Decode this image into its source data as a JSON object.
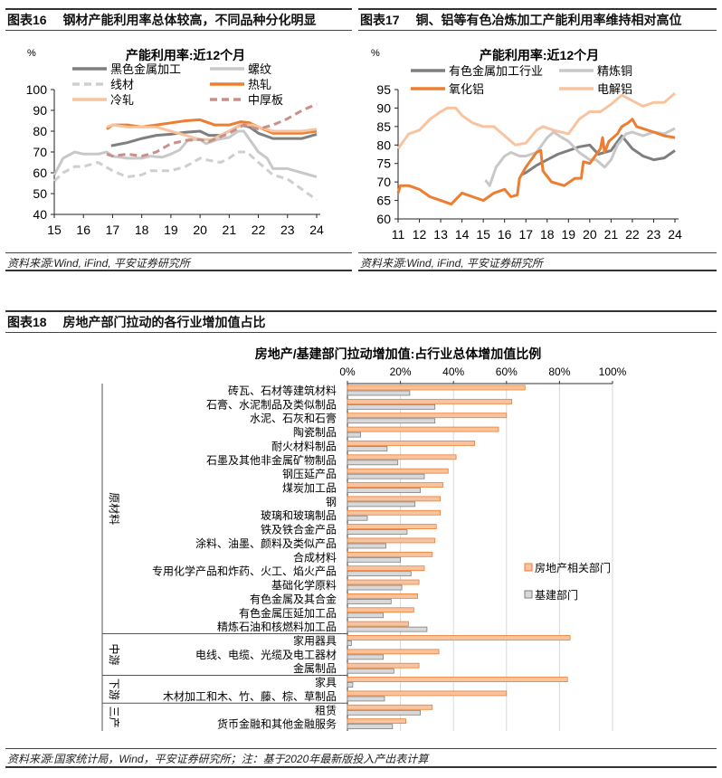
{
  "fig16": {
    "label": "图表16",
    "heading": "钢材产能利用率总体较高，不同品种分化明显",
    "source": "资料来源:Wind, iFind, 平安证券研究所"
  },
  "fig17": {
    "label": "图表17",
    "heading": "铜、铝等有色冶炼加工产能利用率维持相对高位",
    "source": "资料来源:Wind, iFind, 平安证券研究所"
  },
  "fig18": {
    "label": "图表18",
    "heading": "房地产部门拉动的各行业增加值占比",
    "source": "资料来源:国家统计局，Wind，平安证券研究所；注：基于2020年最新版投入产出表计算"
  },
  "chart_data": [
    {
      "type": "line",
      "title": "产能利用率:近12个月",
      "unit": "%",
      "xlim": [
        15,
        24
      ],
      "ylim": [
        40,
        100
      ],
      "xticks": [
        "15",
        "16",
        "17",
        "18",
        "19",
        "20",
        "21",
        "22",
        "23",
        "24"
      ],
      "yticks": [
        "40",
        "50",
        "60",
        "70",
        "80",
        "90",
        "100"
      ],
      "legend": "top",
      "grid": false,
      "series": [
        {
          "name": "黑色金属加工",
          "color": "#7f7f7f",
          "dash": false,
          "points": [
            [
              16.95,
              73
            ],
            [
              17.5,
              74.5
            ],
            [
              18,
              76.5
            ],
            [
              18.5,
              78
            ],
            [
              19,
              78.5
            ],
            [
              19.5,
              79.5
            ],
            [
              20,
              80
            ],
            [
              20.3,
              78
            ],
            [
              20.7,
              78
            ],
            [
              21,
              80
            ],
            [
              21.4,
              83
            ],
            [
              21.7,
              82
            ],
            [
              22,
              79
            ],
            [
              22.5,
              76.5
            ],
            [
              23,
              76.5
            ],
            [
              23.5,
              76.5
            ],
            [
              24,
              78.5
            ]
          ]
        },
        {
          "name": "螺纹",
          "color": "#c8c8c8",
          "dash": false,
          "points": [
            [
              15,
              59
            ],
            [
              15.3,
              67
            ],
            [
              15.7,
              70
            ],
            [
              16,
              69
            ],
            [
              16.5,
              69
            ],
            [
              16.8,
              70
            ],
            [
              17,
              68
            ],
            [
              17.5,
              67
            ],
            [
              18,
              67
            ],
            [
              18.3,
              68
            ],
            [
              18.7,
              67.5
            ],
            [
              19,
              69
            ],
            [
              19.3,
              71
            ],
            [
              19.6,
              76
            ],
            [
              20,
              76
            ],
            [
              20.2,
              74
            ],
            [
              20.6,
              76
            ],
            [
              21,
              77
            ],
            [
              21.3,
              80
            ],
            [
              21.5,
              80
            ],
            [
              22,
              70
            ],
            [
              22.3,
              67
            ],
            [
              22.5,
              62
            ],
            [
              23,
              62
            ],
            [
              23.5,
              60
            ],
            [
              24,
              58
            ]
          ]
        },
        {
          "name": "线材",
          "color": "#cfcfcf",
          "dash": true,
          "points": [
            [
              15,
              56
            ],
            [
              15.3,
              60
            ],
            [
              15.7,
              63
            ],
            [
              16,
              63
            ],
            [
              16.5,
              65
            ],
            [
              17,
              61
            ],
            [
              17.5,
              58
            ],
            [
              18,
              59
            ],
            [
              18.3,
              61
            ],
            [
              19,
              61
            ],
            [
              19.5,
              63
            ],
            [
              20,
              67
            ],
            [
              20.3,
              66
            ],
            [
              20.7,
              65
            ],
            [
              21,
              67
            ],
            [
              21.3,
              70
            ],
            [
              21.6,
              70
            ],
            [
              22,
              65
            ],
            [
              22.5,
              59
            ],
            [
              23,
              57
            ],
            [
              23.5,
              52
            ],
            [
              24,
              47
            ]
          ]
        },
        {
          "name": "热轧",
          "color": "#ed7d31",
          "dash": false,
          "points": [
            [
              16.8,
              81
            ],
            [
              17,
              83
            ],
            [
              17.5,
              83
            ],
            [
              18,
              82
            ],
            [
              18.5,
              83
            ],
            [
              19,
              84
            ],
            [
              19.5,
              85
            ],
            [
              20,
              85.5
            ],
            [
              20.5,
              83
            ],
            [
              21,
              83
            ],
            [
              21.4,
              84.5
            ],
            [
              21.7,
              84
            ],
            [
              22,
              82
            ],
            [
              22.5,
              79
            ],
            [
              23,
              79
            ],
            [
              23.5,
              79
            ],
            [
              24,
              80
            ]
          ]
        },
        {
          "name": "冷轧",
          "color": "#f8c4a0",
          "dash": false,
          "points": [
            [
              16.8,
              82
            ],
            [
              17,
              83
            ],
            [
              17.5,
              82
            ],
            [
              18,
              82
            ],
            [
              18.5,
              82
            ],
            [
              19,
              80
            ],
            [
              19.5,
              78
            ],
            [
              20,
              76
            ],
            [
              20.4,
              76
            ],
            [
              21,
              80
            ],
            [
              21.4,
              83
            ],
            [
              21.8,
              83
            ],
            [
              22,
              82
            ],
            [
              22.5,
              80
            ],
            [
              23,
              80
            ],
            [
              23.5,
              80
            ],
            [
              24,
              81
            ]
          ]
        },
        {
          "name": "中厚板",
          "color": "#c9908a",
          "dash": true,
          "points": [
            [
              16.8,
              69
            ],
            [
              17,
              68
            ],
            [
              17.5,
              69
            ],
            [
              18,
              68
            ],
            [
              18.5,
              70
            ],
            [
              19,
              74
            ],
            [
              19.5,
              75.5
            ],
            [
              20,
              76
            ],
            [
              20.3,
              75
            ],
            [
              21,
              79
            ],
            [
              21.5,
              83
            ],
            [
              22,
              81
            ],
            [
              22.5,
              83
            ],
            [
              23,
              86
            ],
            [
              23.5,
              90
            ],
            [
              24,
              93
            ]
          ]
        }
      ]
    },
    {
      "type": "line",
      "title": "产能利用率:近12个月",
      "unit": "%",
      "xlim": [
        11,
        24
      ],
      "ylim": [
        60,
        95
      ],
      "xticks": [
        "11",
        "12",
        "13",
        "14",
        "15",
        "16",
        "17",
        "18",
        "19",
        "20",
        "21",
        "22",
        "23",
        "24"
      ],
      "yticks": [
        "60",
        "65",
        "70",
        "75",
        "80",
        "85",
        "90",
        "95"
      ],
      "legend": "top",
      "grid": false,
      "series": [
        {
          "name": "有色金属加工行业",
          "color": "#7f7f7f",
          "dash": false,
          "points": [
            [
              16.8,
              72
            ],
            [
              17,
              72.5
            ],
            [
              17.5,
              74.5
            ],
            [
              18,
              76
            ],
            [
              18.5,
              77.5
            ],
            [
              19,
              78.5
            ],
            [
              19.5,
              79.5
            ],
            [
              20,
              80
            ],
            [
              20.4,
              77.5
            ],
            [
              21,
              78.5
            ],
            [
              21.5,
              82.5
            ],
            [
              22,
              79
            ],
            [
              22.5,
              77
            ],
            [
              23,
              76
            ],
            [
              23.5,
              76.5
            ],
            [
              24,
              78.5
            ]
          ]
        },
        {
          "name": "精炼铜",
          "color": "#c8c8c8",
          "dash": false,
          "points": [
            [
              15.1,
              70.5
            ],
            [
              15.3,
              69
            ],
            [
              15.6,
              74
            ],
            [
              16,
              77
            ],
            [
              16.3,
              78
            ],
            [
              16.7,
              77
            ],
            [
              17,
              77
            ],
            [
              17.5,
              78
            ],
            [
              18,
              82
            ],
            [
              18.3,
              83.5
            ],
            [
              18.7,
              82
            ],
            [
              19,
              81
            ],
            [
              19.5,
              78
            ],
            [
              20,
              76
            ],
            [
              20.3,
              76
            ],
            [
              20.7,
              74
            ],
            [
              21,
              76
            ],
            [
              21.3,
              80
            ],
            [
              21.7,
              83
            ],
            [
              22,
              83.5
            ],
            [
              22.5,
              82.5
            ],
            [
              23,
              83.5
            ],
            [
              23.5,
              83
            ],
            [
              24,
              84.5
            ]
          ]
        },
        {
          "name": "氧化铝",
          "color": "#ed7d31",
          "dash": false,
          "points": [
            [
              11,
              67
            ],
            [
              11.1,
              69
            ],
            [
              11.5,
              69
            ],
            [
              12,
              68
            ],
            [
              12.5,
              66
            ],
            [
              13,
              65
            ],
            [
              13.5,
              64
            ],
            [
              14,
              67
            ],
            [
              14.5,
              66
            ],
            [
              15,
              65
            ],
            [
              15.5,
              67
            ],
            [
              16,
              68
            ],
            [
              16.3,
              66
            ],
            [
              16.6,
              66.5
            ],
            [
              16.7,
              71
            ],
            [
              17,
              74
            ],
            [
              17.5,
              78
            ],
            [
              17.7,
              78.5
            ],
            [
              17.8,
              73
            ],
            [
              18.2,
              70
            ],
            [
              18.8,
              69
            ],
            [
              19.3,
              71
            ],
            [
              19.6,
              71
            ],
            [
              19.7,
              75.5
            ],
            [
              20,
              75
            ],
            [
              20.5,
              79
            ],
            [
              20.6,
              82
            ],
            [
              20.7,
              78
            ],
            [
              20.9,
              81
            ],
            [
              21.3,
              83
            ],
            [
              21.5,
              85
            ],
            [
              21.8,
              86
            ],
            [
              22,
              87
            ],
            [
              22.2,
              85
            ],
            [
              23,
              83.5
            ],
            [
              23.5,
              82.5
            ],
            [
              24,
              82
            ]
          ]
        },
        {
          "name": "电解铝",
          "color": "#f8c4a0",
          "dash": false,
          "points": [
            [
              11,
              79
            ],
            [
              11.5,
              83
            ],
            [
              12,
              84
            ],
            [
              12.5,
              87
            ],
            [
              13,
              89
            ],
            [
              13.3,
              90
            ],
            [
              13.7,
              90
            ],
            [
              14,
              88
            ],
            [
              14.5,
              86
            ],
            [
              15,
              85
            ],
            [
              15.5,
              85
            ],
            [
              16,
              82.5
            ],
            [
              16.5,
              80
            ],
            [
              17,
              80.5
            ],
            [
              17.5,
              84
            ],
            [
              17.8,
              85
            ],
            [
              18.3,
              84
            ],
            [
              19,
              83
            ],
            [
              19.5,
              87
            ],
            [
              20,
              89
            ],
            [
              20.5,
              89
            ],
            [
              21,
              91
            ],
            [
              21.5,
              93.5
            ],
            [
              22,
              92
            ],
            [
              22.5,
              90.5
            ],
            [
              23,
              91.5
            ],
            [
              23.5,
              91.5
            ],
            [
              24,
              94
            ]
          ]
        }
      ]
    },
    {
      "type": "bar",
      "orientation": "horizontal",
      "title": "房地产/基建部门拉动增加值:占行业总体增加值比例",
      "xlim": [
        0,
        100
      ],
      "xticks": [
        "0%",
        "20%",
        "40%",
        "60%",
        "80%",
        "100%"
      ],
      "grid": true,
      "legend": "right",
      "series": [
        {
          "name": "房地产相关部门",
          "color": "#f8c4a0",
          "edge": "#ed7d31"
        },
        {
          "name": "基建部门",
          "color": "#d9d9d9",
          "edge": "#7f7f7f"
        }
      ],
      "groups": [
        {
          "name": "原材料",
          "start": 0,
          "end": 17
        },
        {
          "name": "中游",
          "start": 18,
          "end": 20
        },
        {
          "name": "下游",
          "start": 21,
          "end": 22
        },
        {
          "name": "三产",
          "start": 23,
          "end": 24
        }
      ],
      "categories": [
        "砖瓦、石材等建筑材料",
        "石膏、水泥制品及类似制品",
        "水泥、石灰和石膏",
        "陶瓷制品",
        "耐火材料制品",
        "石墨及其他非金属矿物制品",
        "钢压延产品",
        "煤炭加工品",
        "钢",
        "玻璃和玻璃制品",
        "铁及铁合金产品",
        "涂料、油墨、颜料及类似产品",
        "合成材料",
        "专用化学产品和炸药、火工、焰火产品",
        "基础化学原料",
        "有色金属及其合金",
        "有色金属压延加工品",
        "精炼石油和核燃料加工品",
        "家用器具",
        "电线、电缆、光缆及电工器材",
        "金属制品",
        "家具",
        "木材加工和木、竹、藤、棕、草制品",
        "租赁",
        "货币金融和其他金融服务"
      ],
      "values": [
        [
          67,
          62,
          60,
          57,
          48,
          41,
          38,
          36,
          35,
          35,
          33.5,
          33,
          32,
          29,
          27,
          26.5,
          25,
          23,
          84,
          34.5,
          27,
          83,
          60,
          32,
          22
        ],
        [
          23.5,
          33,
          33,
          5,
          15,
          19,
          29,
          27.5,
          25.5,
          7.5,
          22.5,
          14.5,
          20,
          24,
          20.5,
          16.5,
          13.5,
          30,
          1.5,
          13.5,
          17.5,
          2,
          14,
          27.5,
          17
        ]
      ]
    }
  ]
}
